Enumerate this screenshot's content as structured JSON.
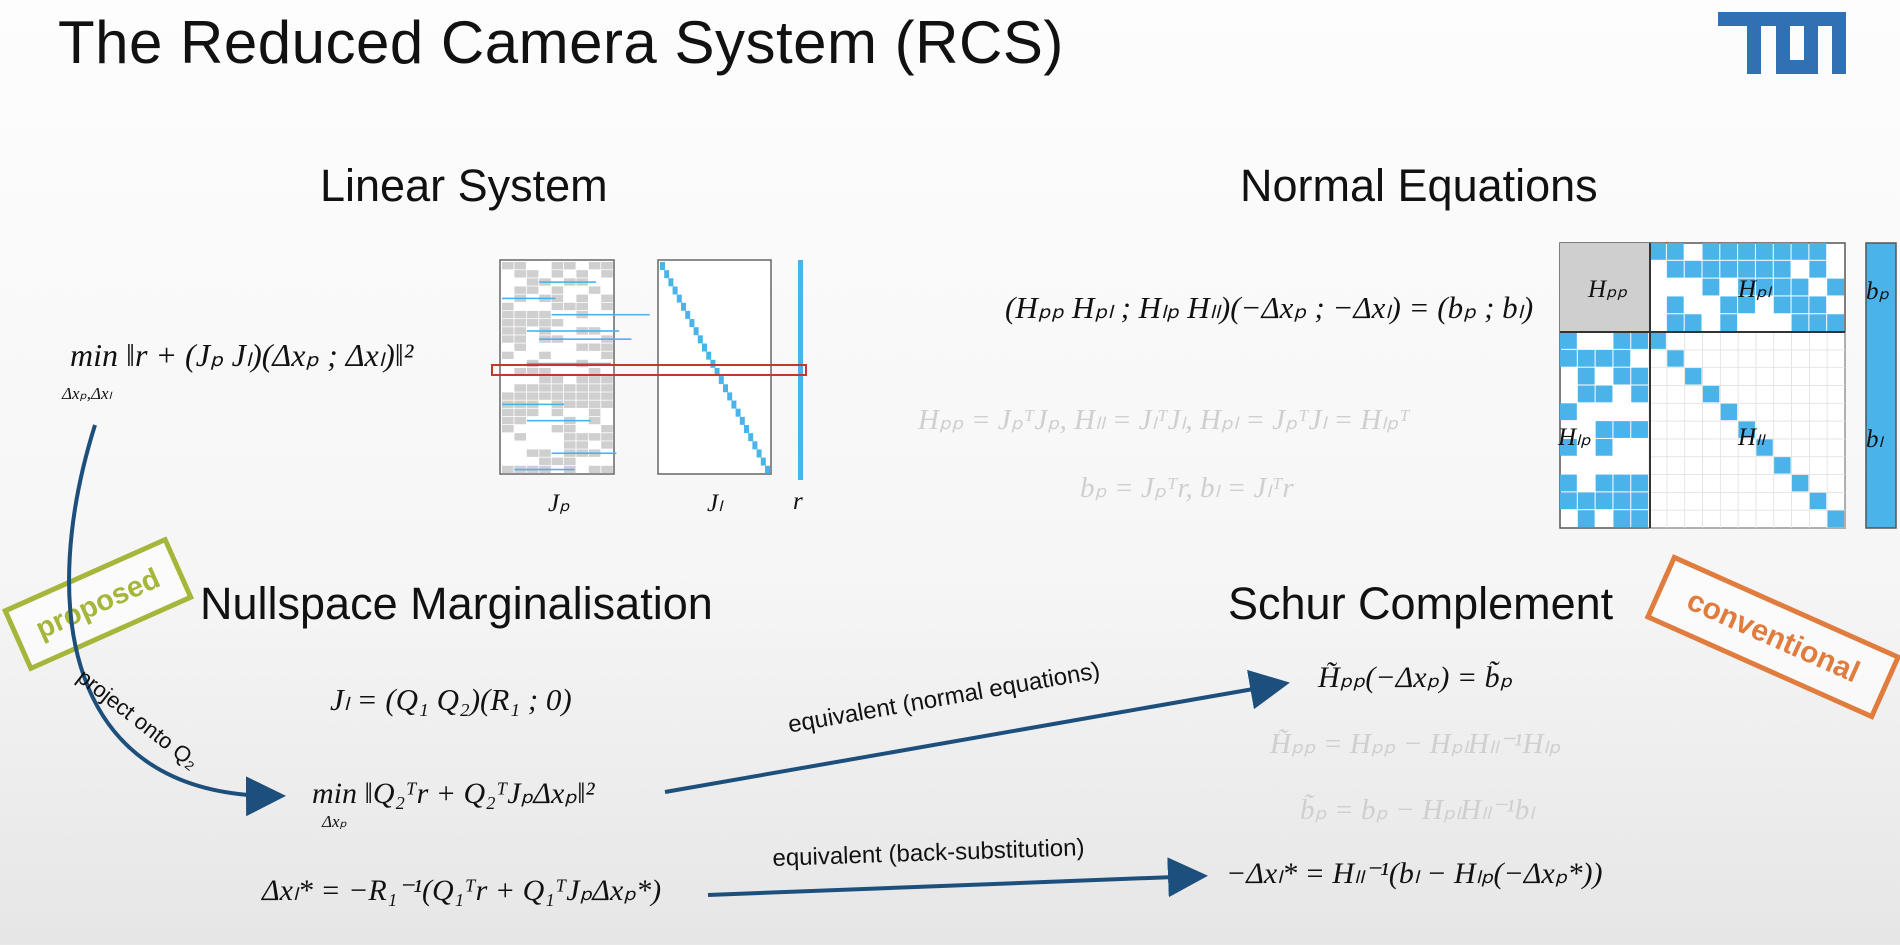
{
  "title": "The Reduced Camera System (RCS)",
  "logo": "TUM",
  "sections": {
    "linear_system": "Linear System",
    "normal_equations": "Normal Equations",
    "nullspace": "Nullspace Marginalisation",
    "schur": "Schur Complement"
  },
  "tags": {
    "proposed": "proposed",
    "conventional": "conventional"
  },
  "arrows": {
    "project": "project onto Q₂",
    "equiv_normal": "equivalent (normal equations)",
    "equiv_back": "equivalent (back-substitution)"
  },
  "matrix_labels": {
    "jp": "Jₚ",
    "jl": "Jₗ",
    "r": "r"
  },
  "hessian_labels": {
    "hpp": "Hₚₚ",
    "hpl": "Hₚₗ",
    "hlp": "Hₗₚ",
    "hll": "Hₗₗ",
    "bp": "bₚ",
    "bl": "bₗ"
  },
  "equations": {
    "min_linear": "min ‖r + (Jₚ  Jₗ)(Δxₚ ; Δxₗ)‖²",
    "min_sub": "Δxₚ,Δxₗ",
    "normal": "(Hₚₚ Hₚₗ ; Hₗₚ Hₗₗ)(−Δxₚ ; −Δxₗ) = (bₚ ; bₗ)",
    "h_defs": "Hₚₚ = JₚᵀJₚ,   Hₗₗ = JₗᵀJₗ,   Hₚₗ = JₚᵀJₗ = Hₗₚᵀ",
    "b_defs": "bₚ = Jₚᵀr,   bₗ = Jₗᵀr",
    "qr": "Jₗ = (Q₁  Q₂)(R₁ ; 0)",
    "min_q": "min ‖Q₂ᵀr + Q₂ᵀJₚΔxₚ‖²",
    "min_q_sub": "Δxₚ",
    "dxl": "Δxₗ* = −R₁⁻¹(Q₁ᵀr + Q₁ᵀJₚΔxₚ*)",
    "schur_main": "H̃ₚₚ(−Δxₚ) = b̃ₚ",
    "schur_h": "H̃ₚₚ = Hₚₚ − HₚₗHₗₗ⁻¹Hₗₚ",
    "schur_b": "b̃ₚ = bₚ − HₚₗHₗₗ⁻¹bₗ",
    "back_sub": "−Δxₗ* = Hₗₗ⁻¹(bₗ − Hₗₚ(−Δxₚ*))"
  },
  "colors": {
    "accent": "#4ab3ea",
    "tum_blue": "#3070b3",
    "arrow": "#1d4f7c",
    "proposed": "#a5b63a",
    "conventional": "#e07c3e",
    "highlight": "#c0392b"
  }
}
